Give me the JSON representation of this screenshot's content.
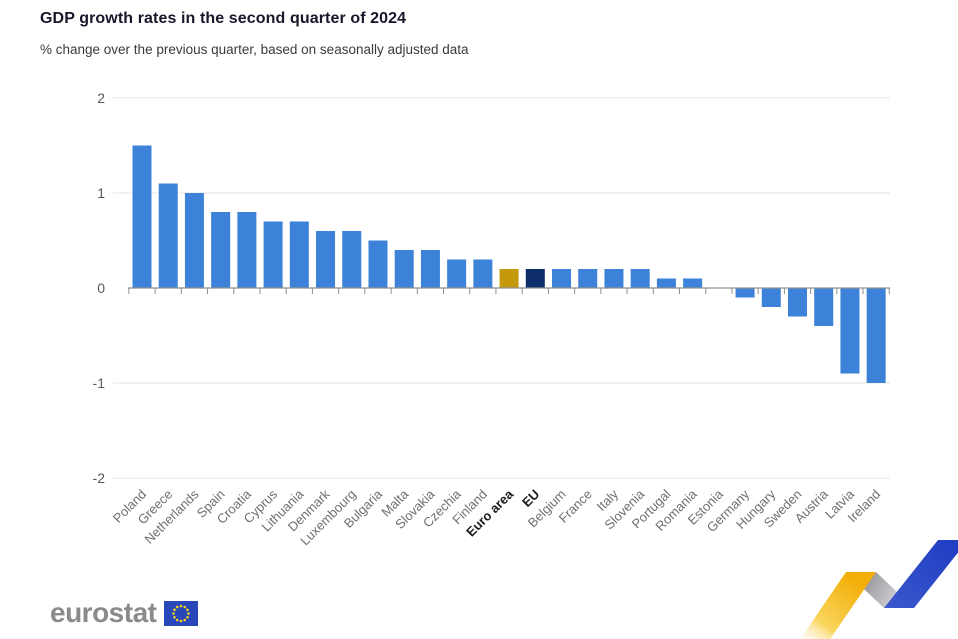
{
  "header": {
    "title": "GDP growth rates in the second quarter of 2024",
    "subtitle": "% change over the previous quarter, based on seasonally adjusted data"
  },
  "chart_data": {
    "type": "bar",
    "title": "GDP growth rates in the second quarter of 2024",
    "subtitle": "% change over the previous quarter, based on seasonally adjusted data",
    "xlabel": "",
    "ylabel": "% change over the previous quarter",
    "ylim": [
      -2,
      2
    ],
    "yticks": [
      2,
      1,
      0,
      -1,
      -2
    ],
    "grid": true,
    "legend": "none",
    "default_bar_color": "#3c82d8",
    "bar_colors": {
      "Euro area": "#c49a0c",
      "EU": "#0e2d6b"
    },
    "bold_labels": [
      "Euro area",
      "EU"
    ],
    "categories": [
      "Poland",
      "Greece",
      "Netherlands",
      "Spain",
      "Croatia",
      "Cyprus",
      "Lithuania",
      "Denmark",
      "Luxembourg",
      "Bulgaria",
      "Malta",
      "Slovakia",
      "Czechia",
      "Finland",
      "Euro area",
      "EU",
      "Belgium",
      "France",
      "Italy",
      "Slovenia",
      "Portugal",
      "Romania",
      "Estonia",
      "Germany",
      "Hungary",
      "Sweden",
      "Austria",
      "Latvia",
      "Ireland"
    ],
    "values": [
      1.5,
      1.1,
      1.0,
      0.8,
      0.8,
      0.7,
      0.7,
      0.6,
      0.6,
      0.5,
      0.4,
      0.4,
      0.3,
      0.3,
      0.2,
      0.2,
      0.2,
      0.2,
      0.2,
      0.2,
      0.1,
      0.1,
      0.0,
      -0.1,
      -0.2,
      -0.3,
      -0.4,
      -0.9,
      -1.0
    ]
  },
  "footer": {
    "logo_text": "eurostat"
  }
}
